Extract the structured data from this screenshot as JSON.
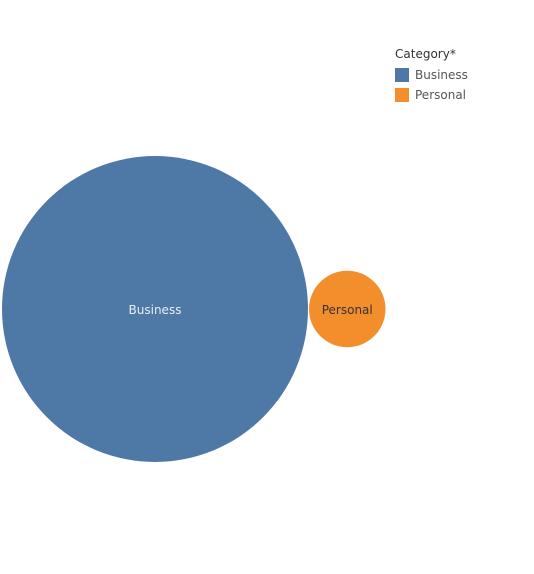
{
  "legend": {
    "title": "Category*",
    "items": [
      {
        "label": "Business",
        "color": "#4e79a7"
      },
      {
        "label": "Personal",
        "color": "#f28e2b"
      }
    ]
  },
  "chart_data": {
    "type": "packed-bubble",
    "title": "",
    "categories": [
      "Business",
      "Personal"
    ],
    "values": [
      16,
      1
    ],
    "colors": [
      "#4e79a7",
      "#f28e2b"
    ],
    "label_colors": [
      "#e8eef5",
      "#333333"
    ],
    "legend_placement": "top-right"
  }
}
